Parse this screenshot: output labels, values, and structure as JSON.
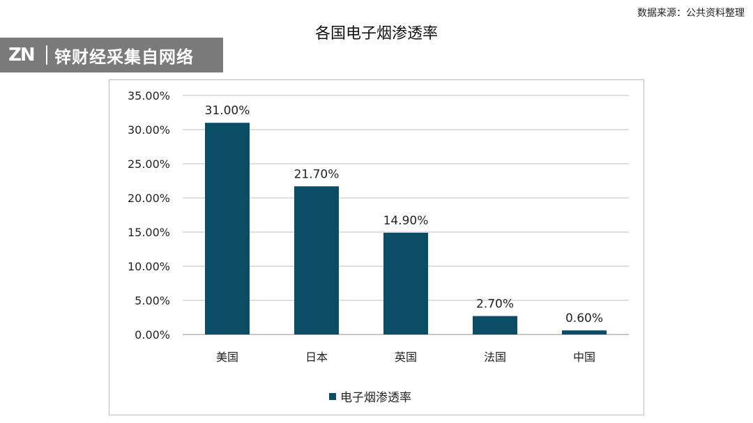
{
  "header": {
    "source": "数据来源：公共资料整理",
    "title": "各国电子烟渗透率"
  },
  "watermark": {
    "logo": "ZN",
    "text": "锌财经采集自网络"
  },
  "colors": {
    "bar": "#0b4d66",
    "grid": "#bfbfbf",
    "axis": "#8c8c8c"
  },
  "chart_data": {
    "type": "bar",
    "title": "",
    "categories": [
      "美国",
      "日本",
      "英国",
      "法国",
      "中国"
    ],
    "series": [
      {
        "name": "电子烟渗透率",
        "values": [
          31.0,
          21.7,
          14.9,
          2.7,
          0.6
        ]
      }
    ],
    "data_labels": [
      "31.00%",
      "21.70%",
      "14.90%",
      "2.70%",
      "0.60%"
    ],
    "y_ticks": [
      0,
      5,
      10,
      15,
      20,
      25,
      30,
      35
    ],
    "y_tick_labels": [
      "0.00%",
      "5.00%",
      "10.00%",
      "15.00%",
      "20.00%",
      "25.00%",
      "30.00%",
      "35.00%"
    ],
    "ylim": [
      0,
      35
    ],
    "xlabel": "",
    "ylabel": "",
    "grid": true,
    "legend": "bottom"
  }
}
